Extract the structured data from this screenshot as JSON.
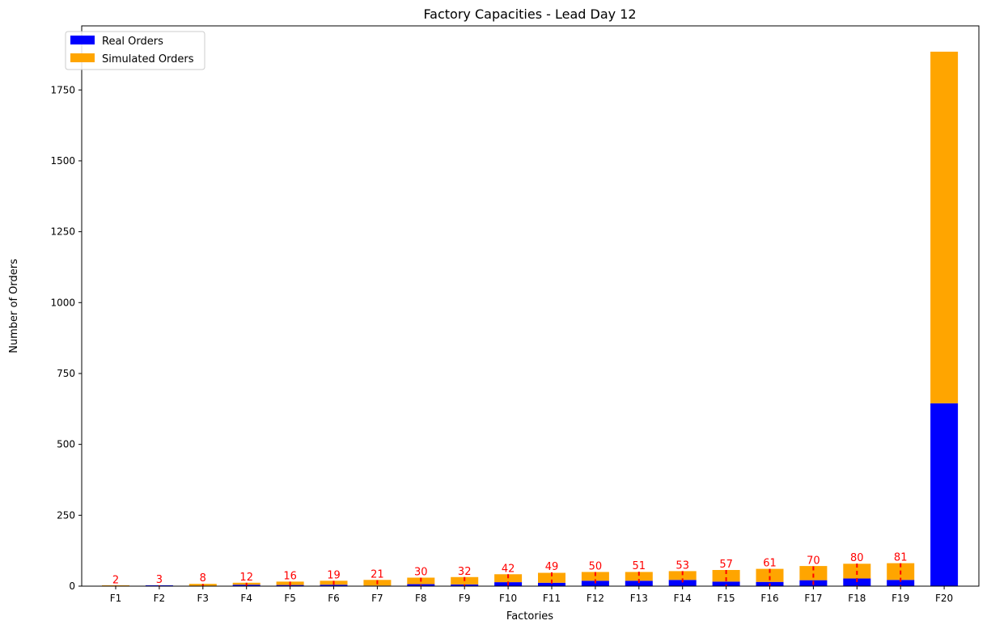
{
  "chart_data": {
    "type": "bar",
    "stacked": true,
    "title": "Factory Capacities - Lead Day 12",
    "xlabel": "Factories",
    "ylabel": "Number of Orders",
    "categories": [
      "F1",
      "F2",
      "F3",
      "F4",
      "F5",
      "F6",
      "F7",
      "F8",
      "F9",
      "F10",
      "F11",
      "F12",
      "F13",
      "F14",
      "F15",
      "F16",
      "F17",
      "F18",
      "F19",
      "F20"
    ],
    "series": [
      {
        "name": "Real Orders",
        "color": "#0000ff",
        "values": [
          0,
          3,
          1,
          5,
          4,
          5,
          2,
          7,
          6,
          14,
          12,
          19,
          19,
          22,
          16,
          15,
          21,
          27,
          22,
          645
        ]
      },
      {
        "name": "Simulated Orders",
        "color": "#ffa500",
        "values": [
          3,
          0,
          7,
          7,
          12,
          14,
          20,
          23,
          26,
          28,
          35,
          31,
          31,
          31,
          41,
          46,
          50,
          52,
          59,
          1240
        ]
      }
    ],
    "capacity_labels": [
      "2",
      "3",
      "8",
      "12",
      "16",
      "19",
      "21",
      "30",
      "32",
      "42",
      "49",
      "50",
      "51",
      "53",
      "57",
      "61",
      "70",
      "80",
      "81",
      ""
    ],
    "capacity_marker_color": "#ff0000",
    "ylim": [
      0,
      1976
    ],
    "yticks": [
      0,
      250,
      500,
      750,
      1000,
      1250,
      1500,
      1750
    ],
    "grid": false,
    "legend_position": "top-left"
  }
}
